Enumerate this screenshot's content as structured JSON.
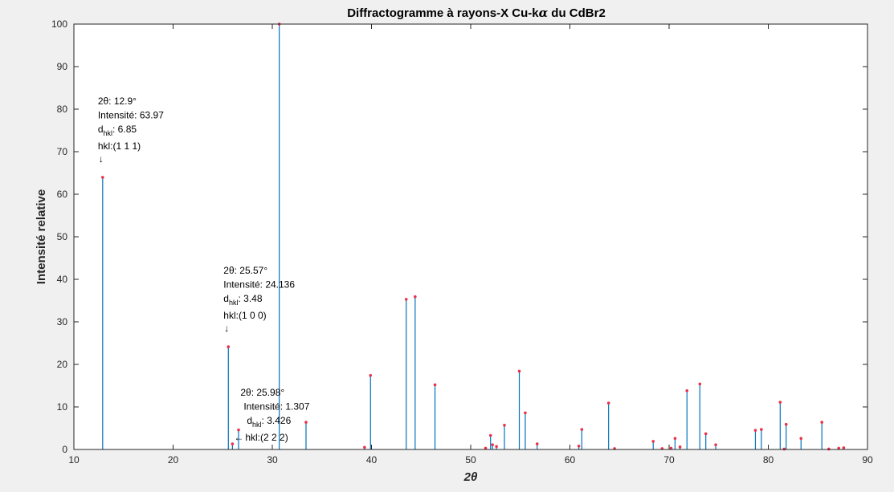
{
  "chart_data": {
    "type": "bar",
    "title_prefix": "Diffractogramme à rayons-X Cu-k",
    "title_symbol": "α",
    "title_suffix": " du CdBr2",
    "xlabel_symbol": "2θ",
    "ylabel": "Intensité relative",
    "xlim": [
      10,
      90
    ],
    "ylim": [
      0,
      100
    ],
    "xticks": [
      10,
      20,
      30,
      40,
      50,
      60,
      70,
      80,
      90
    ],
    "yticks": [
      0,
      10,
      20,
      30,
      40,
      50,
      60,
      70,
      80,
      90,
      100
    ],
    "grid": false,
    "stem_color": "#0072bd",
    "marker_color": "#e8334a",
    "peaks": [
      [
        12.9,
        63.97
      ],
      [
        25.57,
        24.136
      ],
      [
        25.98,
        1.307
      ],
      [
        26.6,
        4.6
      ],
      [
        30.7,
        100
      ],
      [
        33.4,
        6.4
      ],
      [
        39.3,
        0.5
      ],
      [
        39.9,
        17.4
      ],
      [
        43.5,
        35.3
      ],
      [
        44.4,
        35.9
      ],
      [
        46.4,
        15.2
      ],
      [
        51.5,
        0.3
      ],
      [
        52.0,
        3.3
      ],
      [
        52.2,
        1.1
      ],
      [
        52.6,
        0.7
      ],
      [
        53.4,
        5.7
      ],
      [
        54.9,
        18.4
      ],
      [
        55.5,
        8.6
      ],
      [
        56.7,
        1.3
      ],
      [
        60.9,
        0.8
      ],
      [
        61.2,
        4.7
      ],
      [
        63.9,
        10.9
      ],
      [
        64.5,
        0.2
      ],
      [
        68.4,
        1.9
      ],
      [
        69.3,
        0.2
      ],
      [
        70.2,
        0.3
      ],
      [
        70.6,
        2.6
      ],
      [
        71.1,
        0.6
      ],
      [
        71.8,
        13.8
      ],
      [
        73.1,
        15.4
      ],
      [
        73.7,
        3.7
      ],
      [
        74.7,
        1.1
      ],
      [
        78.7,
        4.5
      ],
      [
        79.3,
        4.7
      ],
      [
        81.2,
        11.1
      ],
      [
        81.6,
        0.1
      ],
      [
        81.8,
        5.9
      ],
      [
        83.3,
        2.6
      ],
      [
        85.4,
        6.4
      ],
      [
        86.1,
        0.1
      ],
      [
        87.1,
        0.3
      ],
      [
        87.6,
        0.4
      ]
    ],
    "annotations": [
      {
        "x": 12.9,
        "y": 63.97,
        "two_theta_label": "2θ: 12.9°",
        "intensity_label": "Intensité: 63.97",
        "d_prefix": "d",
        "d_sub": "hkl",
        "d_value": ": 6.85",
        "hkl_label": "hkl:(1 1 1)",
        "arrow": "↓"
      },
      {
        "x": 25.57,
        "y": 24.136,
        "two_theta_label": "2θ: 25.57°",
        "intensity_label": "Intensité: 24.136",
        "d_prefix": "d",
        "d_sub": "hkl",
        "d_value": ": 3.48",
        "hkl_label": "hkl:(1 0 0)",
        "arrow": "↓"
      },
      {
        "x": 25.98,
        "y": 1.307,
        "two_theta_label": "2θ:    25.98°",
        "intensity_label": "Intensité: 1.307",
        "d_prefix": "d",
        "d_sub": "hkl",
        "d_value": ": 3.426",
        "hkl_label": "hkl:(2 2 2)",
        "arrow": "←"
      }
    ]
  }
}
